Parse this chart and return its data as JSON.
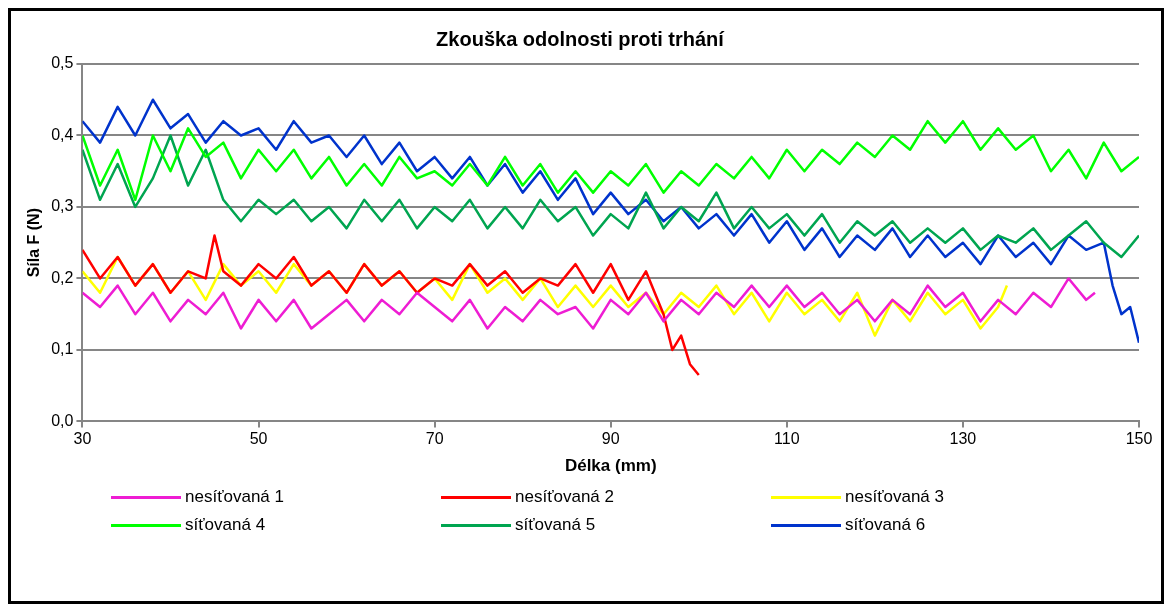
{
  "chart_data": {
    "type": "line",
    "title": "Zkouška odolnosti proti trhání",
    "xlabel": "Délka (mm)",
    "ylabel": "Síla F (N)",
    "xlim": [
      30,
      150
    ],
    "xticks": [
      30,
      50,
      70,
      90,
      110,
      130,
      150
    ],
    "ylim": [
      0,
      0.5
    ],
    "yticks": [
      {
        "value": 0,
        "label": "0,0"
      },
      {
        "value": 0.1,
        "label": "0,1"
      },
      {
        "value": 0.2,
        "label": "0,2"
      },
      {
        "value": 0.3,
        "label": "0,3"
      },
      {
        "value": 0.4,
        "label": "0,4"
      },
      {
        "value": 0.5,
        "label": "0,5"
      }
    ],
    "grid": "y",
    "legend": "bottom",
    "marker": "none",
    "line_style": "solid",
    "series": [
      {
        "name": "nesíťovaná 1",
        "color": "#ee1dd3",
        "x": [
          30,
          32,
          34,
          36,
          38,
          40,
          42,
          44,
          46,
          48,
          50,
          52,
          54,
          56,
          58,
          60,
          62,
          64,
          66,
          68,
          70,
          72,
          74,
          76,
          78,
          80,
          82,
          84,
          86,
          88,
          90,
          92,
          94,
          96,
          98,
          100,
          102,
          104,
          106,
          108,
          110,
          112,
          114,
          116,
          118,
          120,
          122,
          124,
          126,
          128,
          130,
          132,
          134,
          136,
          138,
          140,
          142,
          144,
          145
        ],
        "values": [
          0.18,
          0.16,
          0.19,
          0.15,
          0.18,
          0.14,
          0.17,
          0.15,
          0.18,
          0.13,
          0.17,
          0.14,
          0.17,
          0.13,
          0.15,
          0.17,
          0.14,
          0.17,
          0.15,
          0.18,
          0.16,
          0.14,
          0.17,
          0.13,
          0.16,
          0.14,
          0.17,
          0.15,
          0.16,
          0.13,
          0.17,
          0.15,
          0.18,
          0.14,
          0.17,
          0.15,
          0.18,
          0.16,
          0.19,
          0.16,
          0.19,
          0.16,
          0.18,
          0.15,
          0.17,
          0.14,
          0.17,
          0.15,
          0.19,
          0.16,
          0.18,
          0.14,
          0.17,
          0.15,
          0.18,
          0.16,
          0.2,
          0.17,
          0.18
        ]
      },
      {
        "name": "nesíťovaná 2",
        "color": "#ff0000",
        "x": [
          30,
          32,
          34,
          36,
          38,
          40,
          42,
          44,
          45,
          46,
          48,
          50,
          52,
          54,
          56,
          58,
          60,
          62,
          64,
          66,
          68,
          70,
          72,
          74,
          76,
          78,
          80,
          82,
          84,
          86,
          88,
          90,
          92,
          94,
          96,
          97,
          98,
          99,
          100
        ],
        "values": [
          0.24,
          0.2,
          0.23,
          0.19,
          0.22,
          0.18,
          0.21,
          0.2,
          0.26,
          0.21,
          0.19,
          0.22,
          0.2,
          0.23,
          0.19,
          0.21,
          0.18,
          0.22,
          0.19,
          0.21,
          0.18,
          0.2,
          0.19,
          0.22,
          0.19,
          0.21,
          0.18,
          0.2,
          0.19,
          0.22,
          0.18,
          0.22,
          0.17,
          0.21,
          0.15,
          0.1,
          0.12,
          0.08,
          0.065
        ]
      },
      {
        "name": "nesíťovaná 3",
        "color": "#ffff00",
        "x": [
          30,
          32,
          34,
          36,
          38,
          40,
          42,
          44,
          46,
          48,
          50,
          52,
          54,
          56,
          58,
          60,
          62,
          64,
          66,
          68,
          70,
          72,
          74,
          76,
          78,
          80,
          82,
          84,
          86,
          88,
          90,
          92,
          94,
          96,
          98,
          100,
          102,
          104,
          106,
          108,
          110,
          112,
          114,
          116,
          118,
          120,
          122,
          124,
          126,
          128,
          130,
          132,
          134,
          135
        ],
        "values": [
          0.21,
          0.18,
          0.23,
          0.19,
          0.22,
          0.18,
          0.21,
          0.17,
          0.22,
          0.19,
          0.21,
          0.18,
          0.22,
          0.19,
          0.21,
          0.18,
          0.22,
          0.19,
          0.21,
          0.18,
          0.2,
          0.17,
          0.22,
          0.18,
          0.2,
          0.17,
          0.2,
          0.16,
          0.19,
          0.16,
          0.19,
          0.16,
          0.18,
          0.15,
          0.18,
          0.16,
          0.19,
          0.15,
          0.18,
          0.14,
          0.18,
          0.15,
          0.17,
          0.14,
          0.18,
          0.12,
          0.17,
          0.14,
          0.18,
          0.15,
          0.17,
          0.13,
          0.16,
          0.19
        ]
      },
      {
        "name": "síťovaná 4",
        "color": "#00ff00",
        "x": [
          30,
          32,
          34,
          36,
          38,
          40,
          42,
          44,
          46,
          48,
          50,
          52,
          54,
          56,
          58,
          60,
          62,
          64,
          66,
          68,
          70,
          72,
          74,
          76,
          78,
          80,
          82,
          84,
          86,
          88,
          90,
          92,
          94,
          96,
          98,
          100,
          102,
          104,
          106,
          108,
          110,
          112,
          114,
          116,
          118,
          120,
          122,
          124,
          126,
          128,
          130,
          132,
          134,
          136,
          138,
          140,
          142,
          144,
          146,
          148,
          150
        ],
        "values": [
          0.4,
          0.33,
          0.38,
          0.31,
          0.4,
          0.35,
          0.41,
          0.37,
          0.39,
          0.34,
          0.38,
          0.35,
          0.38,
          0.34,
          0.37,
          0.33,
          0.36,
          0.33,
          0.37,
          0.34,
          0.35,
          0.33,
          0.36,
          0.33,
          0.37,
          0.33,
          0.36,
          0.32,
          0.35,
          0.32,
          0.35,
          0.33,
          0.36,
          0.32,
          0.35,
          0.33,
          0.36,
          0.34,
          0.37,
          0.34,
          0.38,
          0.35,
          0.38,
          0.36,
          0.39,
          0.37,
          0.4,
          0.38,
          0.42,
          0.39,
          0.42,
          0.38,
          0.41,
          0.38,
          0.4,
          0.35,
          0.38,
          0.34,
          0.39,
          0.35,
          0.37
        ]
      },
      {
        "name": "síťovaná 5",
        "color": "#00a550",
        "x": [
          30,
          32,
          34,
          36,
          38,
          40,
          42,
          44,
          46,
          48,
          50,
          52,
          54,
          56,
          58,
          60,
          62,
          64,
          66,
          68,
          70,
          72,
          74,
          76,
          78,
          80,
          82,
          84,
          86,
          88,
          90,
          92,
          94,
          96,
          98,
          100,
          102,
          104,
          106,
          108,
          110,
          112,
          114,
          116,
          118,
          120,
          122,
          124,
          126,
          128,
          130,
          132,
          134,
          136,
          138,
          140,
          142,
          144,
          146,
          148,
          150
        ],
        "values": [
          0.38,
          0.31,
          0.36,
          0.3,
          0.34,
          0.4,
          0.33,
          0.38,
          0.31,
          0.28,
          0.31,
          0.29,
          0.31,
          0.28,
          0.3,
          0.27,
          0.31,
          0.28,
          0.31,
          0.27,
          0.3,
          0.28,
          0.31,
          0.27,
          0.3,
          0.27,
          0.31,
          0.28,
          0.3,
          0.26,
          0.29,
          0.27,
          0.32,
          0.27,
          0.3,
          0.28,
          0.32,
          0.27,
          0.3,
          0.27,
          0.29,
          0.26,
          0.29,
          0.25,
          0.28,
          0.26,
          0.28,
          0.25,
          0.27,
          0.25,
          0.27,
          0.24,
          0.26,
          0.25,
          0.27,
          0.24,
          0.26,
          0.28,
          0.25,
          0.23,
          0.26
        ]
      },
      {
        "name": "síťovaná 6",
        "color": "#0033cc",
        "x": [
          30,
          32,
          34,
          36,
          38,
          40,
          42,
          44,
          46,
          48,
          50,
          52,
          54,
          56,
          58,
          60,
          62,
          64,
          66,
          68,
          70,
          72,
          74,
          76,
          78,
          80,
          82,
          84,
          86,
          88,
          90,
          92,
          94,
          96,
          98,
          100,
          102,
          104,
          106,
          108,
          110,
          112,
          114,
          116,
          118,
          120,
          122,
          124,
          126,
          128,
          130,
          132,
          134,
          136,
          138,
          140,
          142,
          144,
          146,
          147,
          148,
          149,
          150
        ],
        "values": [
          0.42,
          0.39,
          0.44,
          0.4,
          0.45,
          0.41,
          0.43,
          0.39,
          0.42,
          0.4,
          0.41,
          0.38,
          0.42,
          0.39,
          0.4,
          0.37,
          0.4,
          0.36,
          0.39,
          0.35,
          0.37,
          0.34,
          0.37,
          0.33,
          0.36,
          0.32,
          0.35,
          0.31,
          0.34,
          0.29,
          0.32,
          0.29,
          0.31,
          0.28,
          0.3,
          0.27,
          0.29,
          0.26,
          0.29,
          0.25,
          0.28,
          0.24,
          0.27,
          0.23,
          0.26,
          0.24,
          0.27,
          0.23,
          0.26,
          0.23,
          0.25,
          0.22,
          0.26,
          0.23,
          0.25,
          0.22,
          0.26,
          0.24,
          0.25,
          0.19,
          0.15,
          0.16,
          0.11
        ]
      }
    ]
  }
}
